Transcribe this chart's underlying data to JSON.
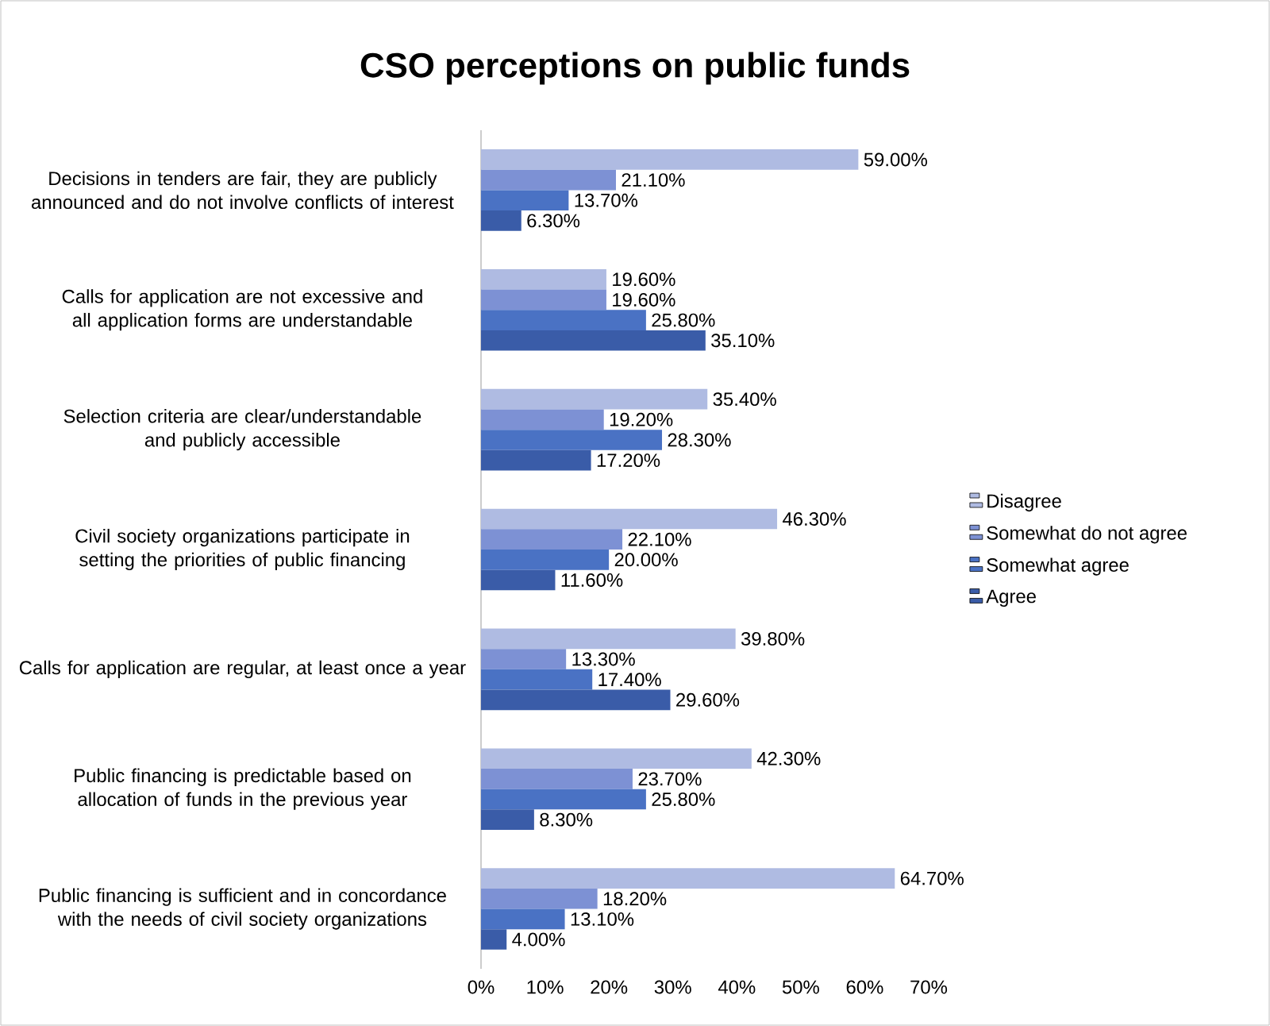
{
  "chart_data": {
    "type": "bar",
    "orientation": "horizontal",
    "title": "CSO perceptions on public funds",
    "categories": [
      "Decisions in tenders are fair, they are publicly announced and do not involve conflicts of interest",
      "Calls for application are not excessive and all application forms are understandable",
      "Selection criteria are clear/understandable and publicly accessible",
      "Civil society organizations participate in setting the priorities of public financing",
      "Calls for application are regular, at least once a year",
      "Public financing is predictable based on allocation of funds in the previous year",
      "Public financing is sufficient and in concordance with the needs of civil society organizations"
    ],
    "series": [
      {
        "name": "Disagree",
        "color": "#afbbe2",
        "values": [
          59.0,
          19.6,
          35.4,
          46.3,
          39.8,
          42.3,
          64.7
        ],
        "value_labels": [
          "59.00%",
          "19.60%",
          "35.40%",
          "46.30%",
          "39.80%",
          "42.30%",
          "64.70%"
        ]
      },
      {
        "name": "Somewhat do not agree",
        "color": "#7d91d4",
        "values": [
          21.1,
          19.6,
          19.2,
          22.1,
          13.3,
          23.7,
          18.2
        ],
        "value_labels": [
          "21.10%",
          "19.60%",
          "19.20%",
          "22.10%",
          "13.30%",
          "23.70%",
          "18.20%"
        ]
      },
      {
        "name": "Somewhat agree",
        "color": "#4a72c4",
        "values": [
          13.7,
          25.8,
          28.3,
          20.0,
          17.4,
          25.8,
          13.1
        ],
        "value_labels": [
          "13.70%",
          "25.80%",
          "28.30%",
          "20.00%",
          "17.40%",
          "25.80%",
          "13.10%"
        ]
      },
      {
        "name": "Agree",
        "color": "#3a5ca8",
        "values": [
          6.3,
          35.1,
          17.2,
          11.6,
          29.6,
          8.3,
          4.0
        ],
        "value_labels": [
          "6.30%",
          "35.10%",
          "17.20%",
          "11.60%",
          "29.60%",
          "8.30%",
          "4.00%"
        ]
      }
    ],
    "xlim": [
      0,
      70
    ],
    "xticks": [
      {
        "value": 0,
        "label": "0%"
      },
      {
        "value": 10,
        "label": "10%"
      },
      {
        "value": 20,
        "label": "20%"
      },
      {
        "value": 30,
        "label": "30%"
      },
      {
        "value": 40,
        "label": "40%"
      },
      {
        "value": 50,
        "label": "50%"
      },
      {
        "value": 60,
        "label": "60%"
      },
      {
        "value": 70,
        "label": "70%"
      }
    ],
    "legend": "right",
    "grid": false
  }
}
